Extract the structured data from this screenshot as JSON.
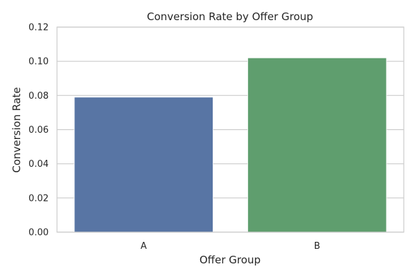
{
  "chart_data": {
    "type": "bar",
    "title": "Conversion Rate by Offer Group",
    "xlabel": "Offer Group",
    "ylabel": "Conversion Rate",
    "categories": [
      "A",
      "B"
    ],
    "values": [
      0.079,
      0.102
    ],
    "colors": [
      "#5875a4",
      "#5f9e6e"
    ],
    "ylim": [
      0,
      0.12
    ],
    "yticks": [
      "0.00",
      "0.02",
      "0.04",
      "0.06",
      "0.08",
      "0.10",
      "0.12"
    ],
    "grid": true,
    "grid_color": "#cccccc",
    "frame_color": "#cccccc",
    "legend": "none"
  }
}
